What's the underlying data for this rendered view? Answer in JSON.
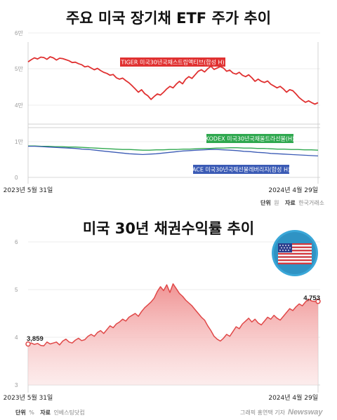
{
  "titles": {
    "etf": "주요 미국 장기채 ETF 주가 추이",
    "yield": "미국 30년 채권수익률 추이"
  },
  "colors": {
    "tiger": "#e03131",
    "kodex": "#2fa84f",
    "ace": "#3b5bb5",
    "yield_line": "#e04848",
    "yield_fill": "#f3a6a6"
  },
  "chart_data": [
    {
      "type": "line",
      "title": "주요 미국 장기채 ETF 주가 추이",
      "y_upper_ticks": [
        "6만",
        "5만",
        "4만"
      ],
      "y_lower_ticks": [
        "1만",
        "0"
      ],
      "upper_ylim": [
        40000,
        60000
      ],
      "lower_ylim": [
        0,
        10000
      ],
      "x_start_label": "2023년 5월 31일",
      "x_end_label": "2024년 4월 29일",
      "series": [
        {
          "name": "TIGER 미국30년국채스트립액티브(합성 H)",
          "values": [
            52000,
            52600,
            53100,
            52800,
            53300,
            53200,
            52700,
            53400,
            53100,
            52500,
            53000,
            52900,
            52600,
            52300,
            51800,
            51900,
            51500,
            51200,
            50600,
            50800,
            50300,
            49800,
            50200,
            49600,
            49100,
            48800,
            48300,
            48500,
            47600,
            47200,
            47500,
            46800,
            46200,
            45400,
            44500,
            43600,
            44300,
            43200,
            42600,
            41600,
            42400,
            43100,
            42800,
            43600,
            44500,
            45200,
            44800,
            45800,
            46600,
            45900,
            47200,
            47900,
            47400,
            48400,
            49400,
            49800,
            49200,
            50100,
            50800,
            49900,
            50300,
            50700,
            50300,
            49400,
            49700,
            48900,
            48600,
            49100,
            48300,
            47900,
            48400,
            47600,
            46600,
            47200,
            46600,
            46300,
            46700,
            45800,
            45300,
            44800,
            45200,
            44500,
            43600,
            44300,
            44000,
            43100,
            42100,
            41400,
            40800,
            41200,
            40700,
            40300,
            40700
          ]
        },
        {
          "name": "KODEX 미국30년국채울트라선물(H)",
          "values": [
            8800,
            8800,
            8700,
            8700,
            8600,
            8600,
            8500,
            8500,
            8400,
            8300,
            8200,
            8100,
            8000,
            7900,
            7800,
            7800,
            7700,
            7600,
            7600,
            7700,
            7700,
            7800,
            7800,
            7900,
            7900,
            8000,
            8100,
            8100,
            8200,
            8200,
            8300,
            8300,
            8200,
            8200,
            8100,
            8100,
            8000,
            7900,
            7900,
            7800,
            7800,
            7700,
            7700,
            7600
          ]
        },
        {
          "name": "ACE 미국30년국채선물레버리지(합성 H)",
          "values": [
            8700,
            8700,
            8600,
            8500,
            8400,
            8300,
            8200,
            8100,
            7900,
            7800,
            7600,
            7400,
            7200,
            7000,
            6800,
            6600,
            6500,
            6400,
            6500,
            6600,
            6800,
            7000,
            7200,
            7400,
            7500,
            7600,
            7700,
            7800,
            7800,
            7700,
            7600,
            7500,
            7300,
            7200,
            7000,
            6900,
            6700,
            6600,
            6500,
            6400,
            6300,
            6200,
            6100,
            6000
          ]
        }
      ]
    },
    {
      "type": "area",
      "title": "미국 30년 채권수익률 추이",
      "y_ticks": [
        "6",
        "5",
        "4",
        "3"
      ],
      "ylim": [
        3,
        6
      ],
      "x_start_label": "2023년 5월 31일",
      "x_end_label": "2024년 4월 29일",
      "start_label": "3,859",
      "end_label": "4,753",
      "series": [
        {
          "name": "",
          "values": [
            3.859,
            3.88,
            3.85,
            3.87,
            3.83,
            3.82,
            3.9,
            3.86,
            3.88,
            3.9,
            3.84,
            3.92,
            3.96,
            3.9,
            3.88,
            3.94,
            3.98,
            3.93,
            3.95,
            4.02,
            4.06,
            4.02,
            4.1,
            4.14,
            4.08,
            4.16,
            4.24,
            4.2,
            4.28,
            4.32,
            4.38,
            4.34,
            4.42,
            4.46,
            4.5,
            4.44,
            4.54,
            4.62,
            4.68,
            4.74,
            4.82,
            4.96,
            5.06,
            4.98,
            5.1,
            4.94,
            5.12,
            5.02,
            4.92,
            4.86,
            4.78,
            4.72,
            4.66,
            4.58,
            4.5,
            4.42,
            4.36,
            4.24,
            4.14,
            4.02,
            3.96,
            3.92,
            3.98,
            4.06,
            4.02,
            4.12,
            4.22,
            4.18,
            4.28,
            4.34,
            4.4,
            4.32,
            4.38,
            4.3,
            4.26,
            4.34,
            4.42,
            4.38,
            4.46,
            4.4,
            4.36,
            4.44,
            4.52,
            4.6,
            4.56,
            4.64,
            4.7,
            4.66,
            4.74,
            4.8,
            4.76,
            4.75,
            4.753
          ]
        }
      ]
    }
  ],
  "source_etf": {
    "unit_label": "단위",
    "unit": "원",
    "source_label": "자료",
    "source": "한국거래소"
  },
  "source_yield": {
    "unit_label": "단위",
    "unit": "%",
    "source_label": "자료",
    "source": "인베스팅닷컴"
  },
  "credit": {
    "graphic": "그래픽 홍연택 기자",
    "brand": "Newsway"
  },
  "flag": {
    "icon": "us-flag-icon"
  }
}
